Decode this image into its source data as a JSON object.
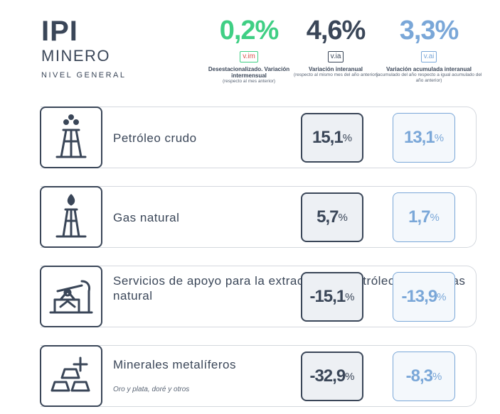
{
  "header": {
    "title": "IPI",
    "subtitle": "MINERO",
    "level": "NIVEL GENERAL"
  },
  "metrics": [
    {
      "value": "0,2%",
      "tag": "v.im",
      "label": "Desestacionalizado. Variación intermensual",
      "note": "(respecto al mes anterior)",
      "color": "#3fcf84"
    },
    {
      "value": "4,6%",
      "tag": "v.ia",
      "label": "Variación interanual",
      "note": "(respecto al mismo mes del año anterior)",
      "color": "#3a4658"
    },
    {
      "value": "3,3%",
      "tag": "v.ai",
      "label": "Variación acumulada interanual",
      "note": "(acumulado del año respecto a igual acumulado del año anterior)",
      "color": "#7aa7d8"
    }
  ],
  "rows": [
    {
      "label": "Petróleo crudo",
      "note": "",
      "icon": "oil-derrick-icon",
      "ia": "15,1",
      "ai": "13,1"
    },
    {
      "label": "Gas natural",
      "note": "",
      "icon": "gas-flame-tower-icon",
      "ia": "5,7",
      "ai": "1,7"
    },
    {
      "label": "Servicios de apoyo para la extracción de petróleo crudo y gas natural",
      "note": "",
      "icon": "pumpjack-icon",
      "ia": "-15,1",
      "ai": "-13,9"
    },
    {
      "label": "Minerales metalíferos",
      "note": "Oro y plata, doré y otros",
      "icon": "gold-bars-icon",
      "ia": "-32,9",
      "ai": "-8,3"
    }
  ],
  "percent_sign": "%"
}
